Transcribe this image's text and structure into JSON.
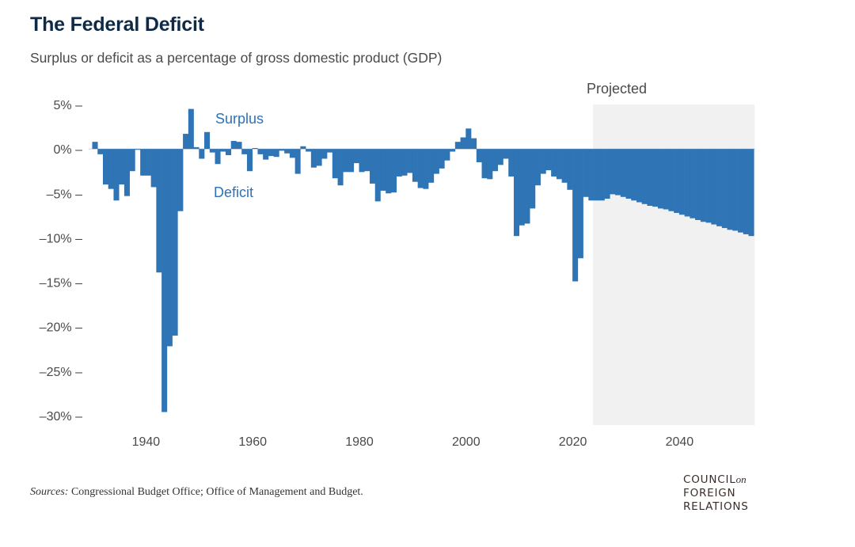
{
  "header": {
    "title": "The Federal Deficit",
    "subtitle": "Surplus or deficit as a percentage of gross domestic product (GDP)"
  },
  "footer": {
    "sources_label": "Sources:",
    "sources_text": " Congressional Budget Office; Office of Management and Budget.",
    "logo_line1": "COUNCIL",
    "logo_on": "on",
    "logo_line2": "FOREIGN",
    "logo_line3": "RELATIONS"
  },
  "colors": {
    "bar": "#2f74b5",
    "projection_shade": "#f1f1f1",
    "annotation": "#2c72ba"
  },
  "chart_data": {
    "type": "bar",
    "xlim": [
      1929,
      2054
    ],
    "ylim": [
      -30,
      5
    ],
    "x_ticks": [
      1940,
      1960,
      1980,
      2000,
      2020,
      2040
    ],
    "x_tick_labels": [
      "1940",
      "1960",
      "1980",
      "2000",
      "2020",
      "2040"
    ],
    "y_ticks": [
      5,
      0,
      -5,
      -10,
      -15,
      -20,
      -25,
      -30
    ],
    "y_tick_labels": [
      "5% –",
      "0% –",
      "–5% –",
      "–10% –",
      "–15% –",
      "–20% –",
      "–25% –",
      "–30% –"
    ],
    "projected_range": [
      2024,
      2054
    ],
    "annotations": {
      "projected": "Projected",
      "surplus": "Surplus",
      "deficit": "Deficit"
    },
    "x": [
      1930,
      1931,
      1932,
      1933,
      1934,
      1935,
      1936,
      1937,
      1938,
      1939,
      1940,
      1941,
      1942,
      1943,
      1944,
      1945,
      1946,
      1947,
      1948,
      1949,
      1950,
      1951,
      1952,
      1953,
      1954,
      1955,
      1956,
      1957,
      1958,
      1959,
      1960,
      1961,
      1962,
      1963,
      1964,
      1965,
      1966,
      1967,
      1968,
      1969,
      1970,
      1971,
      1972,
      1973,
      1974,
      1975,
      1976,
      1977,
      1978,
      1979,
      1980,
      1981,
      1982,
      1983,
      1984,
      1985,
      1986,
      1987,
      1988,
      1989,
      1990,
      1991,
      1992,
      1993,
      1994,
      1995,
      1996,
      1997,
      1998,
      1999,
      2000,
      2001,
      2002,
      2003,
      2004,
      2005,
      2006,
      2007,
      2008,
      2009,
      2010,
      2011,
      2012,
      2013,
      2014,
      2015,
      2016,
      2017,
      2018,
      2019,
      2020,
      2021,
      2022,
      2023,
      2024,
      2025,
      2026,
      2027,
      2028,
      2029,
      2030,
      2031,
      2032,
      2033,
      2034,
      2035,
      2036,
      2037,
      2038,
      2039,
      2040,
      2041,
      2042,
      2043,
      2044,
      2045,
      2046,
      2047,
      2048,
      2049,
      2050,
      2051,
      2052,
      2053
    ],
    "values": [
      0.8,
      -0.6,
      -4.0,
      -4.5,
      -5.8,
      -4.0,
      -5.3,
      -2.5,
      -0.1,
      -3.0,
      -3.0,
      -4.3,
      -13.9,
      -29.6,
      -22.2,
      -21.0,
      -7.0,
      1.7,
      4.5,
      0.2,
      -1.1,
      1.9,
      -0.4,
      -1.7,
      -0.3,
      -0.7,
      0.9,
      0.8,
      -0.6,
      -2.5,
      0.1,
      -0.6,
      -1.2,
      -0.8,
      -0.9,
      -0.2,
      -0.5,
      -1.0,
      -2.8,
      0.3,
      -0.3,
      -2.1,
      -1.9,
      -1.1,
      -0.4,
      -3.3,
      -4.1,
      -2.6,
      -2.6,
      -1.6,
      -2.6,
      -2.5,
      -3.9,
      -5.9,
      -4.7,
      -5.0,
      -4.9,
      -3.1,
      -3.0,
      -2.7,
      -3.7,
      -4.4,
      -4.5,
      -3.8,
      -2.8,
      -2.2,
      -1.3,
      -0.3,
      0.8,
      1.3,
      2.3,
      1.2,
      -1.5,
      -3.3,
      -3.4,
      -2.5,
      -1.8,
      -1.1,
      -3.1,
      -9.8,
      -8.6,
      -8.4,
      -6.7,
      -4.1,
      -2.8,
      -2.4,
      -3.1,
      -3.4,
      -3.8,
      -4.6,
      -14.9,
      -12.3,
      -5.4,
      -5.8,
      -5.8,
      -5.8,
      -5.6,
      -5.1,
      -5.2,
      -5.4,
      -5.6,
      -5.8,
      -6.0,
      -6.2,
      -6.4,
      -6.5,
      -6.7,
      -6.8,
      -7.0,
      -7.2,
      -7.4,
      -7.6,
      -7.8,
      -8.0,
      -8.2,
      -8.3,
      -8.5,
      -8.7,
      -8.9,
      -9.1,
      -9.2,
      -9.4,
      -9.6,
      -9.8
    ]
  }
}
